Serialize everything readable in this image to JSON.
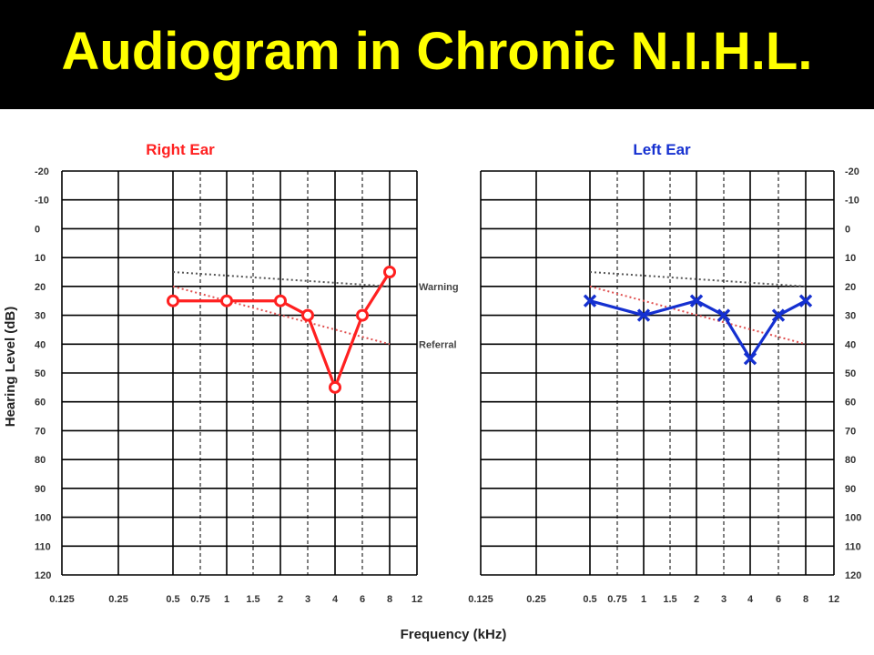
{
  "slide": {
    "title": "Audiogram in Chronic N.I.H.L."
  },
  "colors": {
    "title_text": "#ffff00",
    "background": "#000000",
    "right_ear": "#ff2020",
    "left_ear": "#1530d0",
    "grid": "#000000",
    "reference_lines": "#555555"
  },
  "chart_data": [
    {
      "type": "line",
      "title": "Right Ear",
      "xlabel": "Frequency (kHz)",
      "ylabel": "Hearing Level (dB)",
      "x_ticks": [
        "0.125",
        "0.25",
        "0.5",
        "0.75",
        "1",
        "1.5",
        "2",
        "3",
        "4",
        "6",
        "8",
        "12"
      ],
      "y_ticks": [
        -20,
        -10,
        0,
        10,
        20,
        30,
        40,
        50,
        60,
        70,
        80,
        90,
        100,
        110,
        120
      ],
      "ylim": [
        -20,
        120
      ],
      "y_inverted": true,
      "grid": true,
      "marker": "circle",
      "series": [
        {
          "x": [
            "0.5",
            "1",
            "2",
            "3",
            "4",
            "6",
            "8"
          ],
          "values": [
            25,
            25,
            25,
            30,
            55,
            30,
            15
          ]
        }
      ],
      "reference_lines": [
        {
          "name": "Warning",
          "x": [
            "0.5",
            "8"
          ],
          "values": [
            15,
            20
          ]
        },
        {
          "name": "Referral",
          "x": [
            "0.5",
            "8"
          ],
          "values": [
            20,
            40
          ]
        }
      ]
    },
    {
      "type": "line",
      "title": "Left Ear",
      "xlabel": "Frequency (kHz)",
      "ylabel": "Hearing Level (dB)",
      "x_ticks": [
        "0.125",
        "0.25",
        "0.5",
        "0.75",
        "1",
        "1.5",
        "2",
        "3",
        "4",
        "6",
        "8",
        "12"
      ],
      "y_ticks": [
        -20,
        -10,
        0,
        10,
        20,
        30,
        40,
        50,
        60,
        70,
        80,
        90,
        100,
        110,
        120
      ],
      "ylim": [
        -20,
        120
      ],
      "y_inverted": true,
      "grid": true,
      "marker": "x",
      "series": [
        {
          "x": [
            "0.5",
            "1",
            "2",
            "3",
            "4",
            "6",
            "8"
          ],
          "values": [
            25,
            30,
            25,
            30,
            45,
            30,
            25
          ]
        }
      ],
      "reference_lines": [
        {
          "x": [
            "0.5",
            "8"
          ],
          "values": [
            15,
            20
          ]
        },
        {
          "x": [
            "0.5",
            "8"
          ],
          "values": [
            20,
            40
          ]
        }
      ]
    }
  ],
  "shared": {
    "xlabel": "Frequency (kHz)",
    "ylabel": "Hearing Level (dB)"
  }
}
